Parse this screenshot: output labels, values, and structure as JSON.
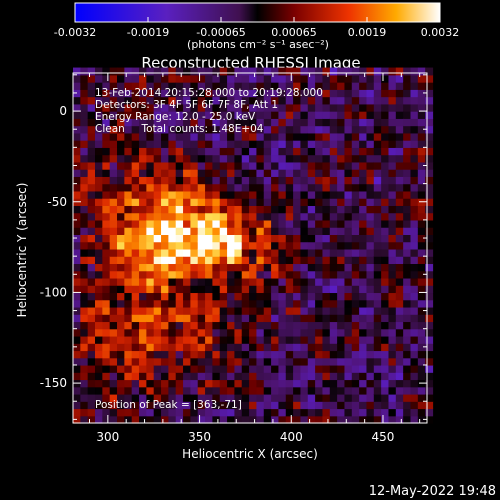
{
  "chart_data": {
    "type": "heatmap",
    "title": "Reconstructed RHESSI Image",
    "xlabel": "Heliocentric X (arcsec)",
    "ylabel": "Heliocentric Y (arcsec)",
    "xlim": [
      281,
      474
    ],
    "ylim": [
      -172,
      21
    ],
    "x_ticks": [
      300,
      350,
      400,
      450
    ],
    "y_ticks": [
      0,
      -50,
      -100,
      -150
    ],
    "colorbar": {
      "label": "(photons cm⁻² s⁻¹ asec⁻²)",
      "range": [
        -0.0032,
        0.0032
      ],
      "ticks": [
        "-0.0032",
        "-0.0019",
        "-0.00065",
        "0.00065",
        "0.0019",
        "0.0032"
      ]
    },
    "annotations": [
      "13-Feb-2014 20:15:28.000 to 20:19:28.000",
      "Detectors: 3F 4F 5F 6F 7F 8F, Att 1",
      "Energy Range: 12.0 - 25.0 keV",
      "Clean     Total counts: 1.48E+04"
    ],
    "peak_label": "Position of Peak = [363,-71]",
    "peak": [
      363,
      -71
    ],
    "sources": [
      {
        "x": 358,
        "y": -70,
        "sx": 24,
        "sy": 14,
        "amp": 0.0029
      },
      {
        "x": 320,
        "y": -62,
        "sx": 24,
        "sy": 26,
        "amp": 0.0019
      },
      {
        "x": 330,
        "y": -118,
        "sx": 30,
        "sy": 18,
        "amp": 0.0012
      },
      {
        "x": 305,
        "y": -140,
        "sx": 18,
        "sy": 16,
        "amp": 0.0008
      }
    ]
  },
  "timestamp": "12-May-2022 19:48"
}
